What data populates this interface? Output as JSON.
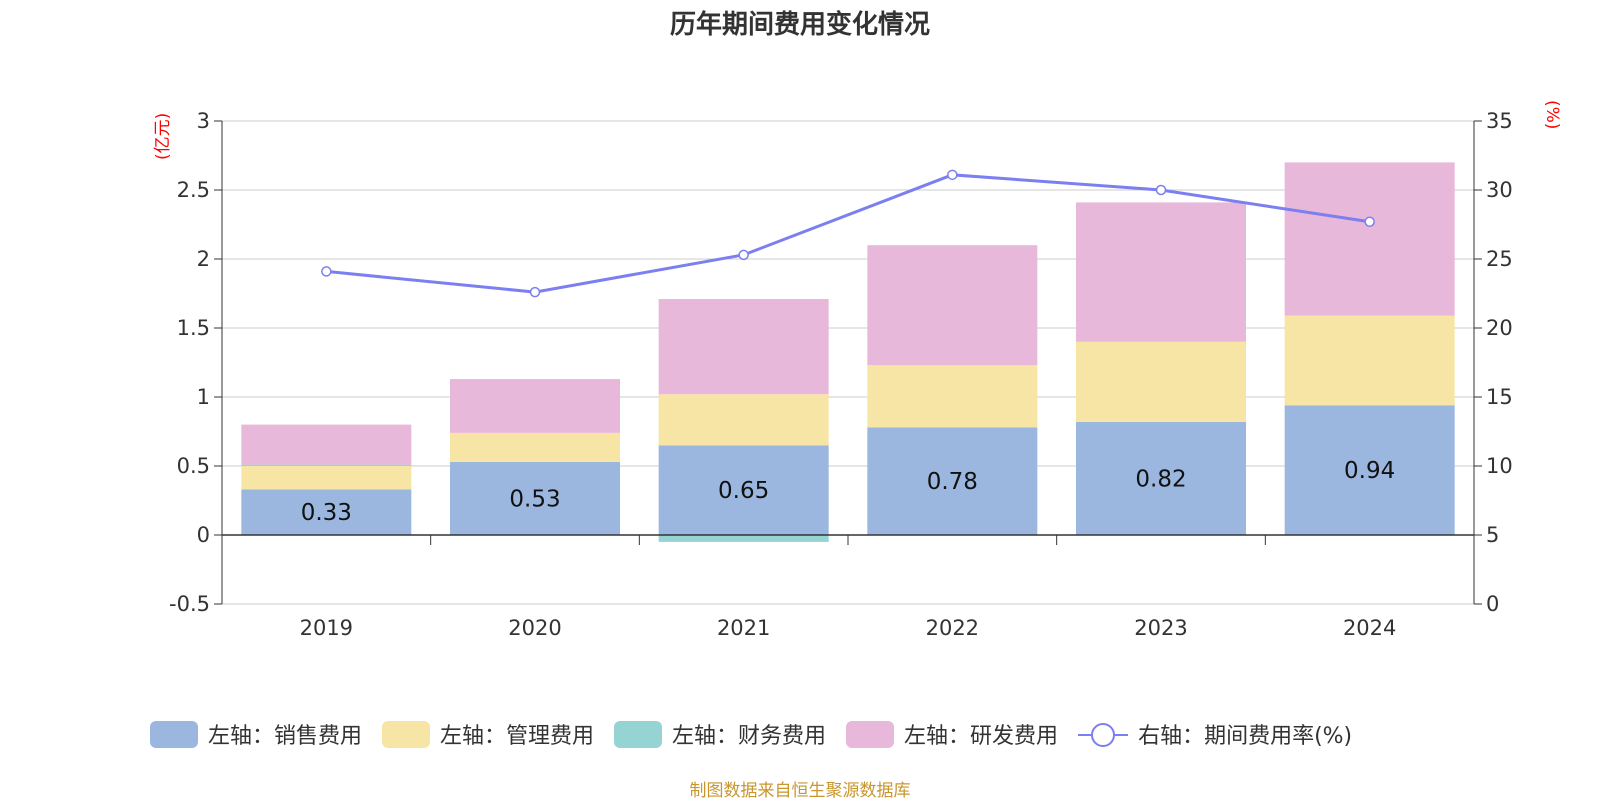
{
  "colors": {
    "sales": "#9bb7e0",
    "admin": "#f7e5a6",
    "finance": "#96d4d4",
    "rnd": "#e7b8d9",
    "rate_line": "#7b7fef",
    "grid": "#cccccc",
    "unit_text": "#ff0000",
    "source_text": "#c8962c"
  },
  "chart_data": {
    "type": "bar",
    "title": "历年期间费用变化情况",
    "left_unit": "(亿元)",
    "right_unit": "(%)",
    "categories": [
      "2019",
      "2020",
      "2021",
      "2022",
      "2023",
      "2024"
    ],
    "stacked": true,
    "ylim_left": [
      -0.5,
      3
    ],
    "yticks_left": [
      "3",
      "2.5",
      "2",
      "1.5",
      "1",
      "0.5",
      "0",
      "-0.5"
    ],
    "ylim_right": [
      0,
      35
    ],
    "yticks_right": [
      "35",
      "30",
      "25",
      "20",
      "15",
      "10",
      "5",
      "0"
    ],
    "grid": true,
    "legend_position": "bottom",
    "series": [
      {
        "name": "左轴：销售费用",
        "axis": "left",
        "type": "bar",
        "values": [
          0.33,
          0.53,
          0.65,
          0.78,
          0.82,
          0.94
        ],
        "labels": [
          "0.33",
          "0.53",
          "0.65",
          "0.78",
          "0.82",
          "0.94"
        ]
      },
      {
        "name": "左轴：管理费用",
        "axis": "left",
        "type": "bar",
        "values": [
          0.17,
          0.21,
          0.37,
          0.45,
          0.58,
          0.65
        ]
      },
      {
        "name": "左轴：财务费用",
        "axis": "left",
        "type": "bar",
        "values": [
          0.01,
          0.0,
          -0.05,
          0.0,
          0.0,
          0.0
        ]
      },
      {
        "name": "左轴：研发费用",
        "axis": "left",
        "type": "bar",
        "values": [
          0.29,
          0.39,
          0.69,
          0.87,
          1.01,
          1.11
        ]
      },
      {
        "name": "右轴：期间费用率(%)",
        "axis": "right",
        "type": "line",
        "values": [
          24.1,
          22.6,
          25.3,
          31.1,
          30.0,
          27.7
        ]
      }
    ]
  },
  "source": "制图数据来自恒生聚源数据库"
}
